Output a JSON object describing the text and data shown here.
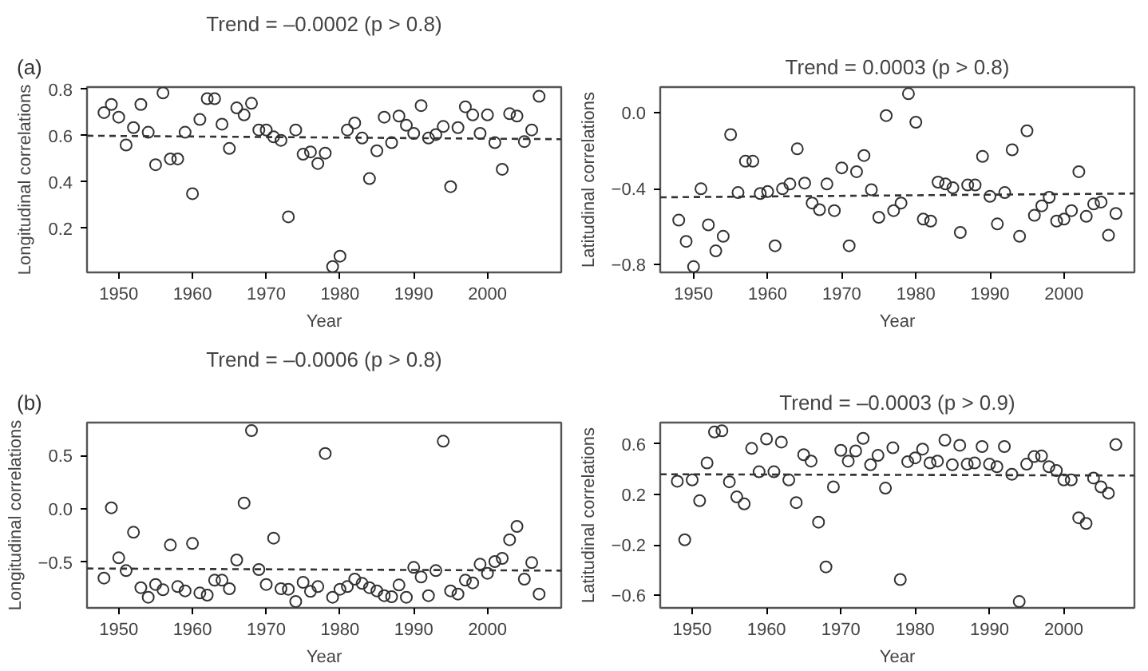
{
  "chart_data": [
    {
      "type": "scatter",
      "title": "Trend = –0.0002 (p > 0.8)",
      "xlabel": "Year",
      "ylabel": "Longitudinal correlations",
      "annotations": [
        "(a)"
      ],
      "marker": "circle",
      "grid": false,
      "x": [
        1948,
        1949,
        1950,
        1951,
        1952,
        1953,
        1954,
        1955,
        1956,
        1957,
        1958,
        1959,
        1960,
        1961,
        1962,
        1963,
        1964,
        1965,
        1966,
        1967,
        1968,
        1969,
        1970,
        1971,
        1972,
        1973,
        1974,
        1975,
        1976,
        1977,
        1978,
        1979,
        1980,
        1981,
        1982,
        1983,
        1984,
        1985,
        1986,
        1987,
        1988,
        1989,
        1990,
        1991,
        1992,
        1993,
        1994,
        1995,
        1996,
        1997,
        1998,
        1999,
        2000,
        2001,
        2002,
        2003,
        2004,
        2005,
        2006,
        2007
      ],
      "xlim": [
        1945.7,
        2010.0
      ],
      "ylim": [
        0.01,
        0.81
      ],
      "xticks": [
        1950,
        1960,
        1970,
        1980,
        1990,
        2000
      ],
      "yticks": [
        0.2,
        0.4,
        0.6,
        0.8
      ],
      "series": [
        {
          "color": "#333333",
          "values": [
            0.7,
            0.735,
            0.68,
            0.56,
            0.635,
            0.735,
            0.615,
            0.475,
            0.785,
            0.5,
            0.5,
            0.615,
            0.35,
            0.67,
            0.76,
            0.76,
            0.65,
            0.545,
            0.72,
            0.69,
            0.74,
            0.625,
            0.625,
            0.595,
            0.58,
            0.25,
            0.625,
            0.52,
            0.53,
            0.48,
            0.525,
            0.035,
            0.08,
            0.625,
            0.655,
            0.59,
            0.415,
            0.535,
            0.68,
            0.57,
            0.685,
            0.645,
            0.61,
            0.73,
            0.59,
            0.605,
            0.64,
            0.38,
            0.635,
            0.725,
            0.69,
            0.61,
            0.69,
            0.57,
            0.455,
            0.695,
            0.685,
            0.575,
            0.625,
            0.77
          ]
        },
        {
          "type": "line",
          "color": "#333333",
          "line_style": "dashed",
          "marker": "none",
          "x": [
            1945.7,
            2010.0
          ],
          "values": [
            0.6,
            0.585
          ]
        }
      ]
    },
    {
      "type": "scatter",
      "title": "Trend = 0.0003 (p > 0.8)",
      "xlabel": "Year",
      "ylabel": "Latitudinal correlations",
      "marker": "circle",
      "grid": false,
      "x": [
        1948,
        1949,
        1950,
        1951,
        1952,
        1953,
        1954,
        1955,
        1956,
        1957,
        1958,
        1959,
        1960,
        1961,
        1962,
        1963,
        1964,
        1965,
        1966,
        1967,
        1968,
        1969,
        1970,
        1971,
        1972,
        1973,
        1974,
        1975,
        1976,
        1977,
        1978,
        1979,
        1980,
        1981,
        1982,
        1983,
        1984,
        1985,
        1986,
        1987,
        1988,
        1989,
        1990,
        1991,
        1992,
        1993,
        1994,
        1995,
        1996,
        1997,
        1998,
        1999,
        2000,
        2001,
        2002,
        2003,
        2004,
        2005,
        2006,
        2007
      ],
      "xlim": [
        1945.5,
        2009.5
      ],
      "ylim": [
        -0.84,
        0.135
      ],
      "xticks": [
        1950,
        1960,
        1970,
        1980,
        1990,
        2000
      ],
      "yticks": [
        {
          "value": -0.8,
          "label": "−0.8"
        },
        {
          "value": -0.4,
          "label": "−0.4"
        },
        {
          "value": 0.0,
          "label": "0.0"
        }
      ],
      "series": [
        {
          "color": "#333333",
          "values": [
            -0.565,
            -0.677,
            -0.81,
            -0.4,
            -0.59,
            -0.727,
            -0.65,
            -0.115,
            -0.42,
            -0.255,
            -0.255,
            -0.425,
            -0.415,
            -0.7,
            -0.4,
            -0.375,
            -0.19,
            -0.37,
            -0.475,
            -0.51,
            -0.375,
            -0.515,
            -0.29,
            -0.7,
            -0.31,
            -0.225,
            -0.405,
            -0.55,
            -0.015,
            -0.515,
            -0.475,
            0.1,
            -0.05,
            -0.56,
            -0.57,
            -0.365,
            -0.375,
            -0.395,
            -0.63,
            -0.38,
            -0.38,
            -0.23,
            -0.44,
            -0.585,
            -0.42,
            -0.195,
            -0.65,
            -0.095,
            -0.54,
            -0.49,
            -0.445,
            -0.57,
            -0.56,
            -0.515,
            -0.31,
            -0.545,
            -0.48,
            -0.47,
            -0.645,
            -0.53
          ]
        },
        {
          "type": "line",
          "color": "#333333",
          "line_style": "dashed",
          "marker": "none",
          "x": [
            1945.5,
            2009.5
          ],
          "values": [
            -0.445,
            -0.425
          ]
        }
      ]
    },
    {
      "type": "scatter",
      "title": "Trend = –0.0006 (p > 0.8)",
      "xlabel": "Year",
      "ylabel": "Longitudinal correlations",
      "annotations": [
        "(b)"
      ],
      "marker": "circle",
      "grid": false,
      "x": [
        1948,
        1949,
        1950,
        1951,
        1952,
        1953,
        1954,
        1955,
        1956,
        1957,
        1958,
        1959,
        1960,
        1961,
        1962,
        1963,
        1964,
        1965,
        1966,
        1967,
        1968,
        1969,
        1970,
        1971,
        1972,
        1973,
        1974,
        1975,
        1976,
        1977,
        1978,
        1979,
        1980,
        1981,
        1982,
        1983,
        1984,
        1985,
        1986,
        1987,
        1988,
        1989,
        1990,
        1991,
        1992,
        1993,
        1994,
        1995,
        1996,
        1997,
        1998,
        1999,
        2000,
        2001,
        2002,
        2003,
        2004,
        2005,
        2006,
        2007
      ],
      "xlim": [
        1945.7,
        2010.0
      ],
      "ylim": [
        -0.93,
        0.81
      ],
      "xticks": [
        1950,
        1960,
        1970,
        1980,
        1990,
        2000
      ],
      "yticks": [
        {
          "value": -0.5,
          "label": "−0.5"
        },
        {
          "value": 0.0,
          "label": "0.0"
        },
        {
          "value": 0.5,
          "label": "0.5"
        }
      ],
      "series": [
        {
          "color": "#333333",
          "values": [
            -0.65,
            0.01,
            -0.46,
            -0.58,
            -0.22,
            -0.74,
            -0.83,
            -0.71,
            -0.76,
            -0.34,
            -0.73,
            -0.77,
            -0.325,
            -0.79,
            -0.81,
            -0.67,
            -0.67,
            -0.75,
            -0.48,
            0.055,
            0.735,
            -0.57,
            -0.71,
            -0.275,
            -0.75,
            -0.755,
            -0.87,
            -0.69,
            -0.775,
            -0.73,
            0.52,
            -0.83,
            -0.755,
            -0.73,
            -0.66,
            -0.7,
            -0.74,
            -0.77,
            -0.815,
            -0.825,
            -0.715,
            -0.83,
            -0.55,
            -0.64,
            -0.815,
            -0.58,
            0.635,
            -0.77,
            -0.8,
            -0.67,
            -0.695,
            -0.52,
            -0.605,
            -0.495,
            -0.465,
            -0.29,
            -0.165,
            -0.66,
            -0.505,
            -0.8
          ]
        },
        {
          "type": "line",
          "color": "#333333",
          "line_style": "dashed",
          "marker": "none",
          "x": [
            1945.7,
            2010.0
          ],
          "values": [
            -0.56,
            -0.58
          ]
        }
      ]
    },
    {
      "type": "scatter",
      "title": "Trend = –0.0003 (p > 0.9)",
      "xlabel": "Year",
      "ylabel": "Latitudinal correlations",
      "marker": "circle",
      "grid": false,
      "x": [
        1948,
        1949,
        1950,
        1951,
        1952,
        1953,
        1954,
        1955,
        1956,
        1957,
        1958,
        1959,
        1960,
        1961,
        1962,
        1963,
        1964,
        1965,
        1966,
        1967,
        1968,
        1969,
        1970,
        1971,
        1972,
        1973,
        1974,
        1975,
        1976,
        1977,
        1978,
        1979,
        1980,
        1981,
        1982,
        1983,
        1984,
        1985,
        1986,
        1987,
        1988,
        1989,
        1990,
        1991,
        1992,
        1993,
        1994,
        1995,
        1996,
        1997,
        1998,
        1999,
        2000,
        2001,
        2002,
        2003,
        2004,
        2005,
        2006,
        2007
      ],
      "xlim": [
        1945.7,
        2009.5
      ],
      "ylim": [
        -0.7,
        0.77
      ],
      "xticks": [
        1950,
        1960,
        1970,
        1980,
        1990,
        2000
      ],
      "yticks": [
        {
          "value": -0.6,
          "label": "−0.6"
        },
        {
          "value": -0.2,
          "label": "−0.2"
        },
        0.2,
        0.6
      ],
      "series": [
        {
          "color": "#333333",
          "values": [
            0.305,
            -0.16,
            0.315,
            0.15,
            0.45,
            0.695,
            0.705,
            0.3,
            0.18,
            0.125,
            0.565,
            0.38,
            0.64,
            0.38,
            0.615,
            0.315,
            0.135,
            0.515,
            0.465,
            -0.02,
            -0.375,
            0.26,
            0.55,
            0.465,
            0.545,
            0.645,
            0.435,
            0.51,
            0.25,
            0.57,
            -0.475,
            0.46,
            0.49,
            0.56,
            0.45,
            0.465,
            0.63,
            0.435,
            0.59,
            0.44,
            0.45,
            0.58,
            0.44,
            0.42,
            0.58,
            0.36,
            -0.65,
            0.44,
            0.5,
            0.505,
            0.42,
            0.39,
            0.315,
            0.315,
            0.015,
            -0.03,
            0.33,
            0.26,
            0.21,
            0.595
          ]
        },
        {
          "type": "line",
          "color": "#333333",
          "line_style": "dashed",
          "marker": "none",
          "x": [
            1945.7,
            2009.5
          ],
          "values": [
            0.36,
            0.35
          ]
        }
      ]
    }
  ]
}
